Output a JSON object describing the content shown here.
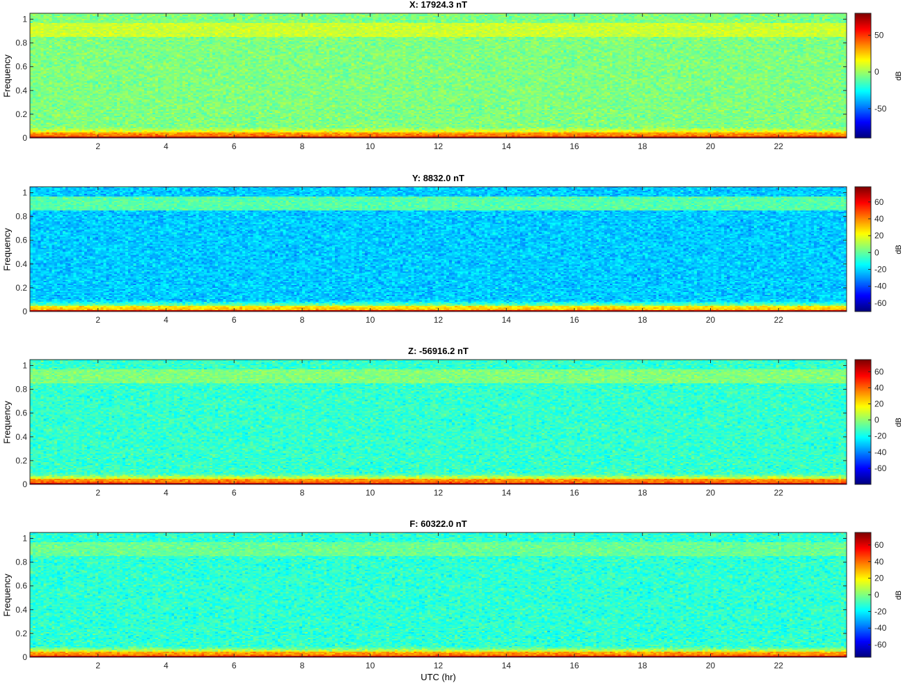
{
  "chart_data": [
    {
      "type": "heatmap",
      "title": "X: 17924.3 nT",
      "xlabel": "",
      "ylabel": "Frequency",
      "xlim": [
        0,
        24
      ],
      "ylim": [
        0,
        1.05
      ],
      "xticks": [
        2,
        4,
        6,
        8,
        10,
        12,
        14,
        16,
        18,
        20,
        22
      ],
      "yticks": [
        0,
        0.2,
        0.4,
        0.6,
        0.8,
        1
      ],
      "colorbar": {
        "label": "dB",
        "range": [
          -90,
          80
        ],
        "ticks": [
          -50,
          0,
          50
        ],
        "colormap": "jet"
      },
      "bands_db": {
        "dc": 75,
        "low": 30,
        "bulk": -5,
        "upper": 8
      }
    },
    {
      "type": "heatmap",
      "title": "Y: 8832.0 nT",
      "xlabel": "",
      "ylabel": "Frequency",
      "xlim": [
        0,
        24
      ],
      "ylim": [
        0,
        1.05
      ],
      "xticks": [
        2,
        4,
        6,
        8,
        10,
        12,
        14,
        16,
        18,
        20,
        22
      ],
      "yticks": [
        0,
        0.2,
        0.4,
        0.6,
        0.8,
        1
      ],
      "colorbar": {
        "label": "dB",
        "range": [
          -70,
          78
        ],
        "ticks": [
          -60,
          -40,
          -20,
          0,
          20,
          40,
          60
        ],
        "colormap": "jet"
      },
      "bands_db": {
        "dc": 70,
        "low": 22,
        "bulk": -22,
        "upper": -2
      }
    },
    {
      "type": "heatmap",
      "title": "Z: -56916.2 nT",
      "xlabel": "",
      "ylabel": "Frequency",
      "xlim": [
        0,
        24
      ],
      "ylim": [
        0,
        1.05
      ],
      "xticks": [
        2,
        4,
        6,
        8,
        10,
        12,
        14,
        16,
        18,
        20,
        22
      ],
      "yticks": [
        0,
        0.2,
        0.4,
        0.6,
        0.8,
        1
      ],
      "colorbar": {
        "label": "dB",
        "range": [
          -80,
          75
        ],
        "ticks": [
          -60,
          -40,
          -20,
          0,
          20,
          40,
          60
        ],
        "colormap": "jet"
      },
      "bands_db": {
        "dc": 66,
        "low": 30,
        "bulk": -14,
        "upper": -2
      }
    },
    {
      "type": "heatmap",
      "title": "F: 60322.0 nT",
      "xlabel": "UTC (hr)",
      "ylabel": "Frequency",
      "xlim": [
        0,
        24
      ],
      "ylim": [
        0,
        1.05
      ],
      "xticks": [
        2,
        4,
        6,
        8,
        10,
        12,
        14,
        16,
        18,
        20,
        22
      ],
      "yticks": [
        0,
        0.2,
        0.4,
        0.6,
        0.8,
        1
      ],
      "colorbar": {
        "label": "dB",
        "range": [
          -75,
          75
        ],
        "ticks": [
          -60,
          -40,
          -20,
          0,
          20,
          40,
          60
        ],
        "colormap": "jet"
      },
      "bands_db": {
        "dc": 68,
        "low": 28,
        "bulk": -12,
        "upper": -3
      }
    }
  ]
}
